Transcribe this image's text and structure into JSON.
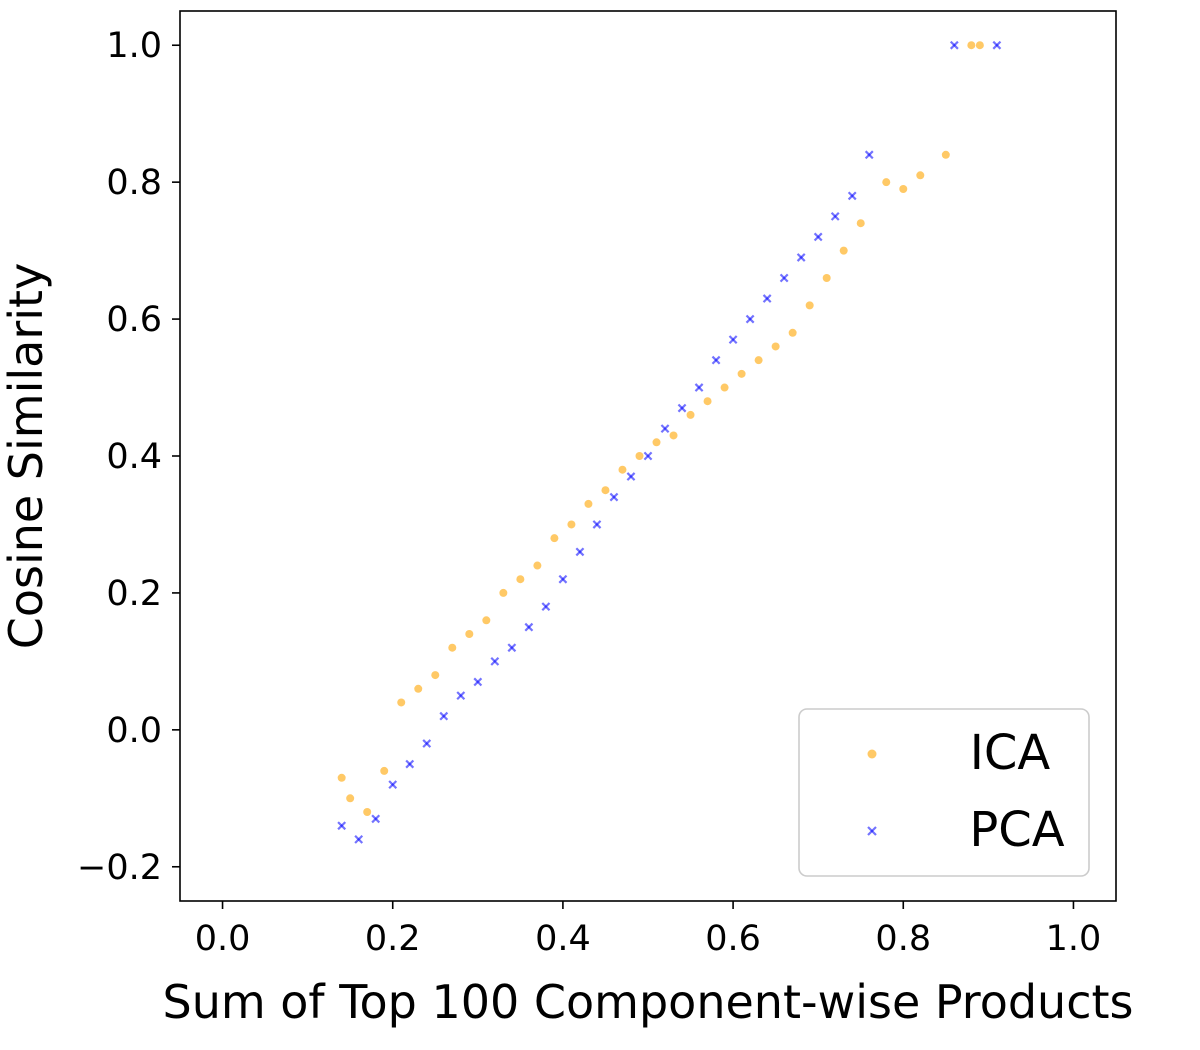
{
  "colors": {
    "ica": "#FFA500",
    "pca": "#0000FF"
  },
  "chart_data": {
    "type": "scatter",
    "title": "",
    "xlabel": "Sum of Top 100 Component-wise Products",
    "ylabel": "Cosine Similarity",
    "xlim": [
      -0.05,
      1.05
    ],
    "ylim": [
      -0.25,
      1.05
    ],
    "xticks": [
      0.0,
      0.2,
      0.4,
      0.6,
      0.8,
      1.0
    ],
    "xtick_labels": [
      "0.0",
      "0.2",
      "0.4",
      "0.6",
      "0.8",
      "1.0"
    ],
    "yticks": [
      -0.2,
      0.0,
      0.2,
      0.4,
      0.6,
      0.8,
      1.0
    ],
    "ytick_labels": [
      "−0.2",
      "0.0",
      "0.2",
      "0.4",
      "0.6",
      "0.8",
      "1.0"
    ],
    "grid": false,
    "legend_position": "lower-right",
    "series": [
      {
        "name": "PCA",
        "marker": "x",
        "color": "#0000FF",
        "x": [
          0.14,
          0.16,
          0.18,
          0.2,
          0.22,
          0.24,
          0.26,
          0.28,
          0.3,
          0.32,
          0.34,
          0.36,
          0.38,
          0.4,
          0.42,
          0.44,
          0.46,
          0.48,
          0.5,
          0.52,
          0.54,
          0.56,
          0.58,
          0.6,
          0.62,
          0.64,
          0.66,
          0.68,
          0.7,
          0.72,
          0.74,
          0.76,
          0.86,
          0.91
        ],
        "y": [
          -0.14,
          -0.16,
          -0.13,
          -0.08,
          -0.05,
          -0.02,
          0.02,
          0.05,
          0.07,
          0.1,
          0.12,
          0.15,
          0.18,
          0.22,
          0.26,
          0.3,
          0.34,
          0.37,
          0.4,
          0.44,
          0.47,
          0.5,
          0.54,
          0.57,
          0.6,
          0.63,
          0.66,
          0.69,
          0.72,
          0.75,
          0.78,
          0.84,
          1.0,
          1.0
        ]
      },
      {
        "name": "ICA",
        "marker": "o",
        "color": "#FFA500",
        "x": [
          0.14,
          0.15,
          0.17,
          0.19,
          0.21,
          0.23,
          0.25,
          0.27,
          0.29,
          0.31,
          0.33,
          0.35,
          0.37,
          0.39,
          0.41,
          0.43,
          0.45,
          0.47,
          0.49,
          0.51,
          0.53,
          0.55,
          0.57,
          0.59,
          0.61,
          0.63,
          0.65,
          0.67,
          0.69,
          0.71,
          0.73,
          0.75,
          0.78,
          0.8,
          0.82,
          0.85,
          0.88,
          0.89
        ],
        "y": [
          -0.07,
          -0.1,
          -0.12,
          -0.06,
          0.04,
          0.06,
          0.08,
          0.12,
          0.14,
          0.16,
          0.2,
          0.22,
          0.24,
          0.28,
          0.3,
          0.33,
          0.35,
          0.38,
          0.4,
          0.42,
          0.43,
          0.46,
          0.48,
          0.5,
          0.52,
          0.54,
          0.56,
          0.58,
          0.62,
          0.66,
          0.7,
          0.74,
          0.8,
          0.79,
          0.81,
          0.84,
          1.0,
          1.0
        ]
      }
    ]
  }
}
